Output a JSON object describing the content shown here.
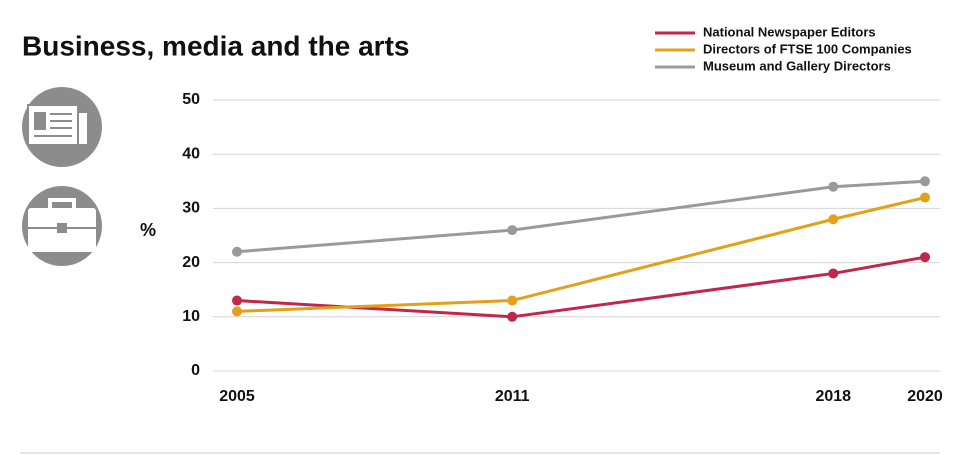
{
  "chart_data": {
    "type": "line",
    "title": "Business, media and the arts",
    "y_label": "%",
    "x": [
      2005,
      2011,
      2018,
      2020
    ],
    "xlim": [
      2005,
      2020
    ],
    "xticks": [
      2005,
      2011,
      2018,
      2020
    ],
    "ylim": [
      0,
      50
    ],
    "yticks": [
      0,
      10,
      20,
      30,
      40,
      50
    ],
    "grid": true,
    "series": [
      {
        "name": "National Newspaper Editors",
        "color": "#c1264b",
        "values": [
          13,
          10,
          18,
          21
        ]
      },
      {
        "name": "Directors of FTSE 100 Companies",
        "color": "#e3a11b",
        "values": [
          11,
          13,
          28,
          32
        ]
      },
      {
        "name": "Museum and Gallery Directors",
        "color": "#9a9a9a",
        "values": [
          22,
          26,
          34,
          35
        ]
      }
    ]
  }
}
